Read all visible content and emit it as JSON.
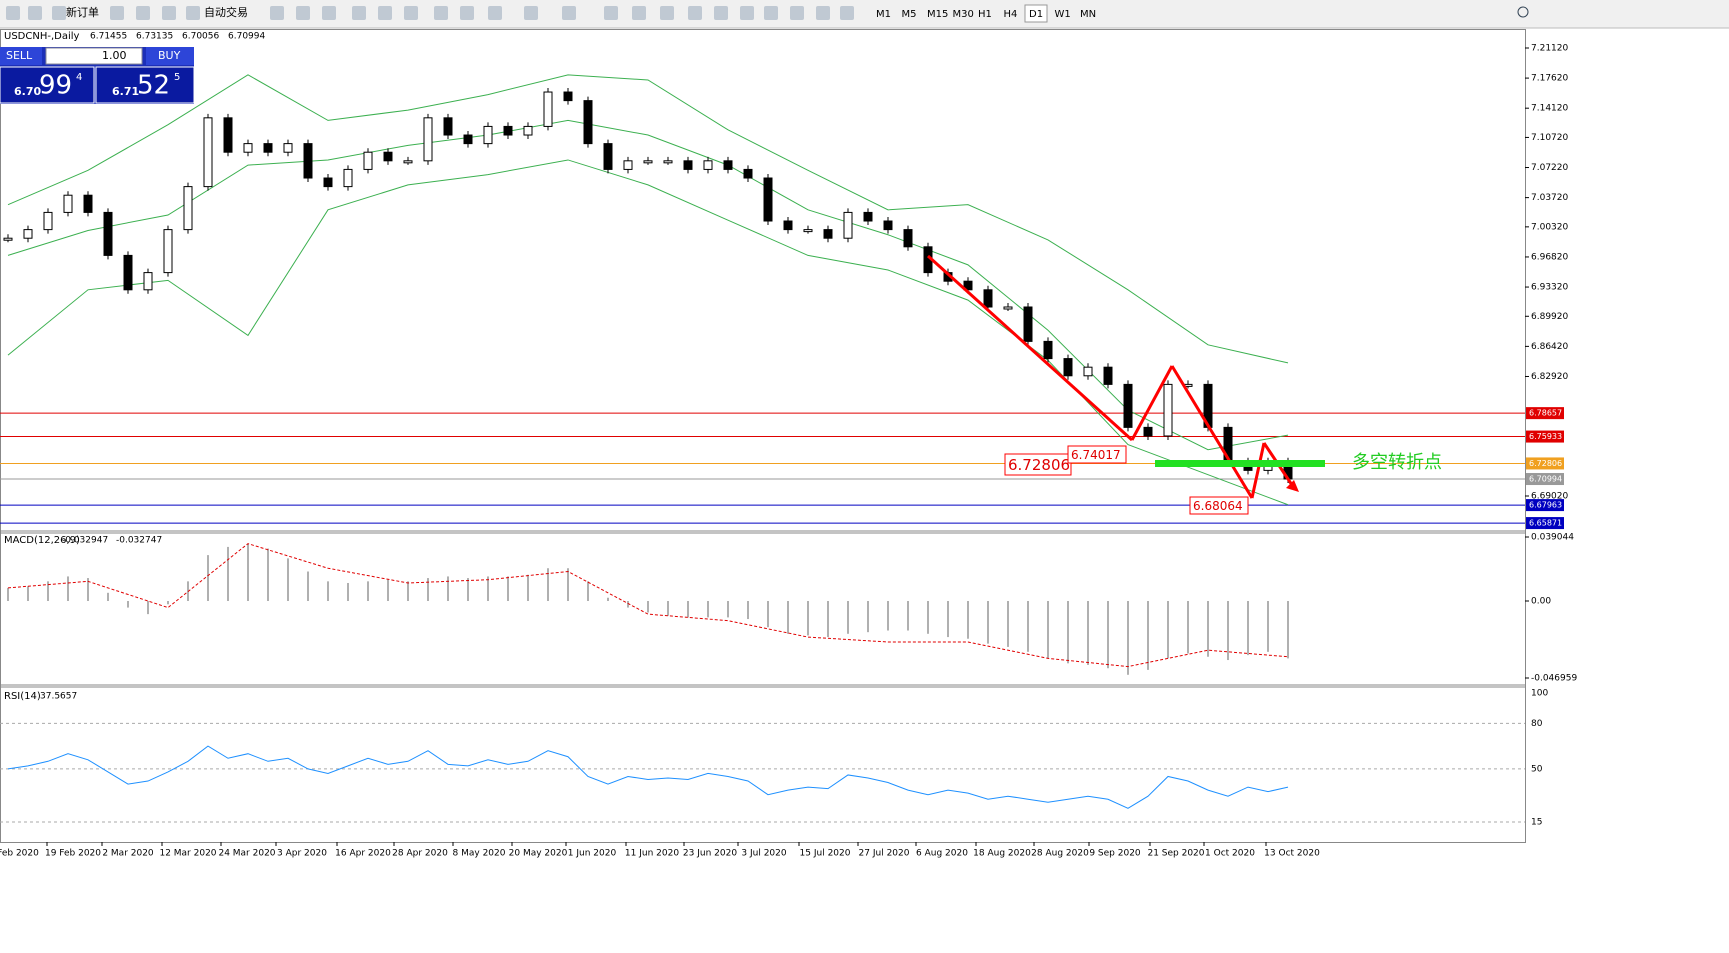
{
  "toolbar": {
    "new_order": "新订单",
    "auto_trading": "自动交易",
    "timeframes": [
      "M1",
      "M5",
      "M15",
      "M30",
      "H1",
      "H4",
      "D1",
      "W1",
      "MN"
    ]
  },
  "header": {
    "symbol": "USDCNH-,Daily",
    "ohlc": [
      6.71455,
      6.73135,
      6.70056,
      6.70994
    ]
  },
  "trade_panel": {
    "sell": "SELL",
    "buy": "BUY",
    "volume": "1.00",
    "bid": [
      "6.70",
      "99",
      "4"
    ],
    "ask": [
      "6.71",
      "52",
      "5"
    ]
  },
  "chart": {
    "yticks": [
      {
        "value": 7.2112,
        "label": "7.21120"
      },
      {
        "value": 7.1762,
        "label": "7.17620"
      },
      {
        "value": 7.1412,
        "label": "7.14120"
      },
      {
        "value": 7.1072,
        "label": "7.10720"
      },
      {
        "value": 7.0722,
        "label": "7.07220"
      },
      {
        "value": 7.0372,
        "label": "7.03720"
      },
      {
        "value": 7.0032,
        "label": "7.00320"
      },
      {
        "value": 6.9682,
        "label": "6.96820"
      },
      {
        "value": 6.9332,
        "label": "6.93320"
      },
      {
        "value": 6.8992,
        "label": "6.89920"
      },
      {
        "value": 6.8642,
        "label": "6.86420"
      },
      {
        "value": 6.8292,
        "label": "6.82920"
      },
      {
        "value": 6.6902,
        "label": "6.69020"
      }
    ],
    "closes": [
      6.99,
      7.0,
      7.02,
      7.04,
      7.02,
      6.97,
      6.93,
      6.95,
      7.0,
      7.05,
      7.13,
      7.09,
      7.1,
      7.09,
      7.1,
      7.06,
      7.05,
      7.07,
      7.09,
      7.08,
      7.08,
      7.13,
      7.11,
      7.1,
      7.12,
      7.11,
      7.12,
      7.16,
      7.15,
      7.1,
      7.07,
      7.08,
      7.08,
      7.08,
      7.07,
      7.08,
      7.07,
      7.06,
      7.01,
      7.0,
      7.0,
      6.99,
      7.02,
      7.01,
      7.0,
      6.98,
      6.95,
      6.94,
      6.93,
      6.91,
      6.91,
      6.87,
      6.85,
      6.83,
      6.84,
      6.82,
      6.77,
      6.76,
      6.82,
      6.82,
      6.77,
      6.73,
      6.72,
      6.73,
      6.71
    ],
    "bb_upper": [
      7.029,
      7.069,
      7.122,
      7.18,
      7.127,
      7.139,
      7.157,
      7.18,
      7.174,
      7.116,
      7.069,
      7.023,
      7.029,
      6.988,
      6.93,
      6.866,
      6.845
    ],
    "bb_middle": [
      6.97,
      6.999,
      7.017,
      7.075,
      7.081,
      7.098,
      7.11,
      7.127,
      7.11,
      7.075,
      7.023,
      6.994,
      6.959,
      6.883,
      6.79,
      6.744,
      6.761
    ],
    "bb_lower": [
      6.854,
      6.93,
      6.941,
      6.877,
      7.023,
      7.052,
      7.064,
      7.081,
      7.052,
      7.011,
      6.97,
      6.953,
      6.918,
      6.848,
      6.75,
      6.715,
      6.68
    ],
    "levels": [
      {
        "value": 6.78657,
        "color": "#e00000"
      },
      {
        "value": 6.75933,
        "color": "#e00000"
      },
      {
        "value": 6.72806,
        "color": "#f0a020"
      },
      {
        "value": 6.70994,
        "color": "#999999"
      },
      {
        "value": 6.67963,
        "color": "#0000c0"
      },
      {
        "value": 6.65871,
        "color": "#0000c0"
      }
    ],
    "annotations": [
      6.72806,
      6.74017,
      6.68064
    ],
    "turning_point": "多空转折点",
    "dates": [
      "Feb 2020",
      "19 Feb 2020",
      "2 Mar 2020",
      "12 Mar 2020",
      "24 Mar 2020",
      "3 Apr 2020",
      "16 Apr 2020",
      "28 Apr 2020",
      "8 May 2020",
      "20 May 2020",
      "1 Jun 2020",
      "11 Jun 2020",
      "23 Jun 2020",
      "3 Jul 2020",
      "15 Jul 2020",
      "27 Jul 2020",
      "6 Aug 2020",
      "18 Aug 2020",
      "28 Aug 2020",
      "9 Sep 2020",
      "21 Sep 2020",
      "1 Oct 2020",
      "13 Oct 2020"
    ]
  },
  "macd": {
    "label": "MACD(12,26,9)",
    "current": [
      -0.032947,
      -0.032747
    ],
    "yticks": [
      {
        "value": 0.039044,
        "label": "0.039044"
      },
      {
        "value": 0,
        "label": "0.00"
      },
      {
        "value": -0.046959,
        "label": "-0.046959"
      }
    ],
    "histogram": [
      0.008,
      0.009,
      0.012,
      0.015,
      0.014,
      0.005,
      -0.004,
      -0.008,
      -0.002,
      0.012,
      0.028,
      0.033,
      0.035,
      0.032,
      0.026,
      0.018,
      0.012,
      0.011,
      0.012,
      0.013,
      0.012,
      0.014,
      0.015,
      0.014,
      0.015,
      0.015,
      0.016,
      0.02,
      0.02,
      0.012,
      0.002,
      -0.004,
      -0.007,
      -0.009,
      -0.01,
      -0.01,
      -0.01,
      -0.011,
      -0.016,
      -0.02,
      -0.021,
      -0.022,
      -0.02,
      -0.019,
      -0.018,
      -0.018,
      -0.02,
      -0.022,
      -0.023,
      -0.026,
      -0.028,
      -0.031,
      -0.035,
      -0.038,
      -0.039,
      -0.041,
      -0.045,
      -0.042,
      -0.035,
      -0.032,
      -0.034,
      -0.036,
      -0.033,
      -0.031,
      -0.035
    ],
    "signal": [
      0.008,
      0.012,
      -0.004,
      0.035,
      0.02,
      0.011,
      0.013,
      0.018,
      -0.008,
      -0.012,
      -0.022,
      -0.025,
      -0.025,
      -0.035,
      -0.04,
      -0.03,
      -0.034
    ]
  },
  "rsi": {
    "label": "RSI(14)",
    "current": 37.5657,
    "yticks": [
      100,
      80,
      50,
      15
    ],
    "values": [
      50,
      52,
      55,
      60,
      56,
      48,
      40,
      42,
      48,
      55,
      65,
      57,
      60,
      55,
      57,
      50,
      47,
      52,
      57,
      53,
      55,
      62,
      53,
      52,
      56,
      53,
      55,
      62,
      58,
      45,
      40,
      45,
      43,
      44,
      43,
      47,
      45,
      42,
      33,
      36,
      38,
      37,
      46,
      44,
      41,
      36,
      33,
      36,
      34,
      30,
      32,
      30,
      28,
      30,
      32,
      30,
      24,
      32,
      45,
      42,
      36,
      32,
      38,
      35,
      38
    ]
  }
}
